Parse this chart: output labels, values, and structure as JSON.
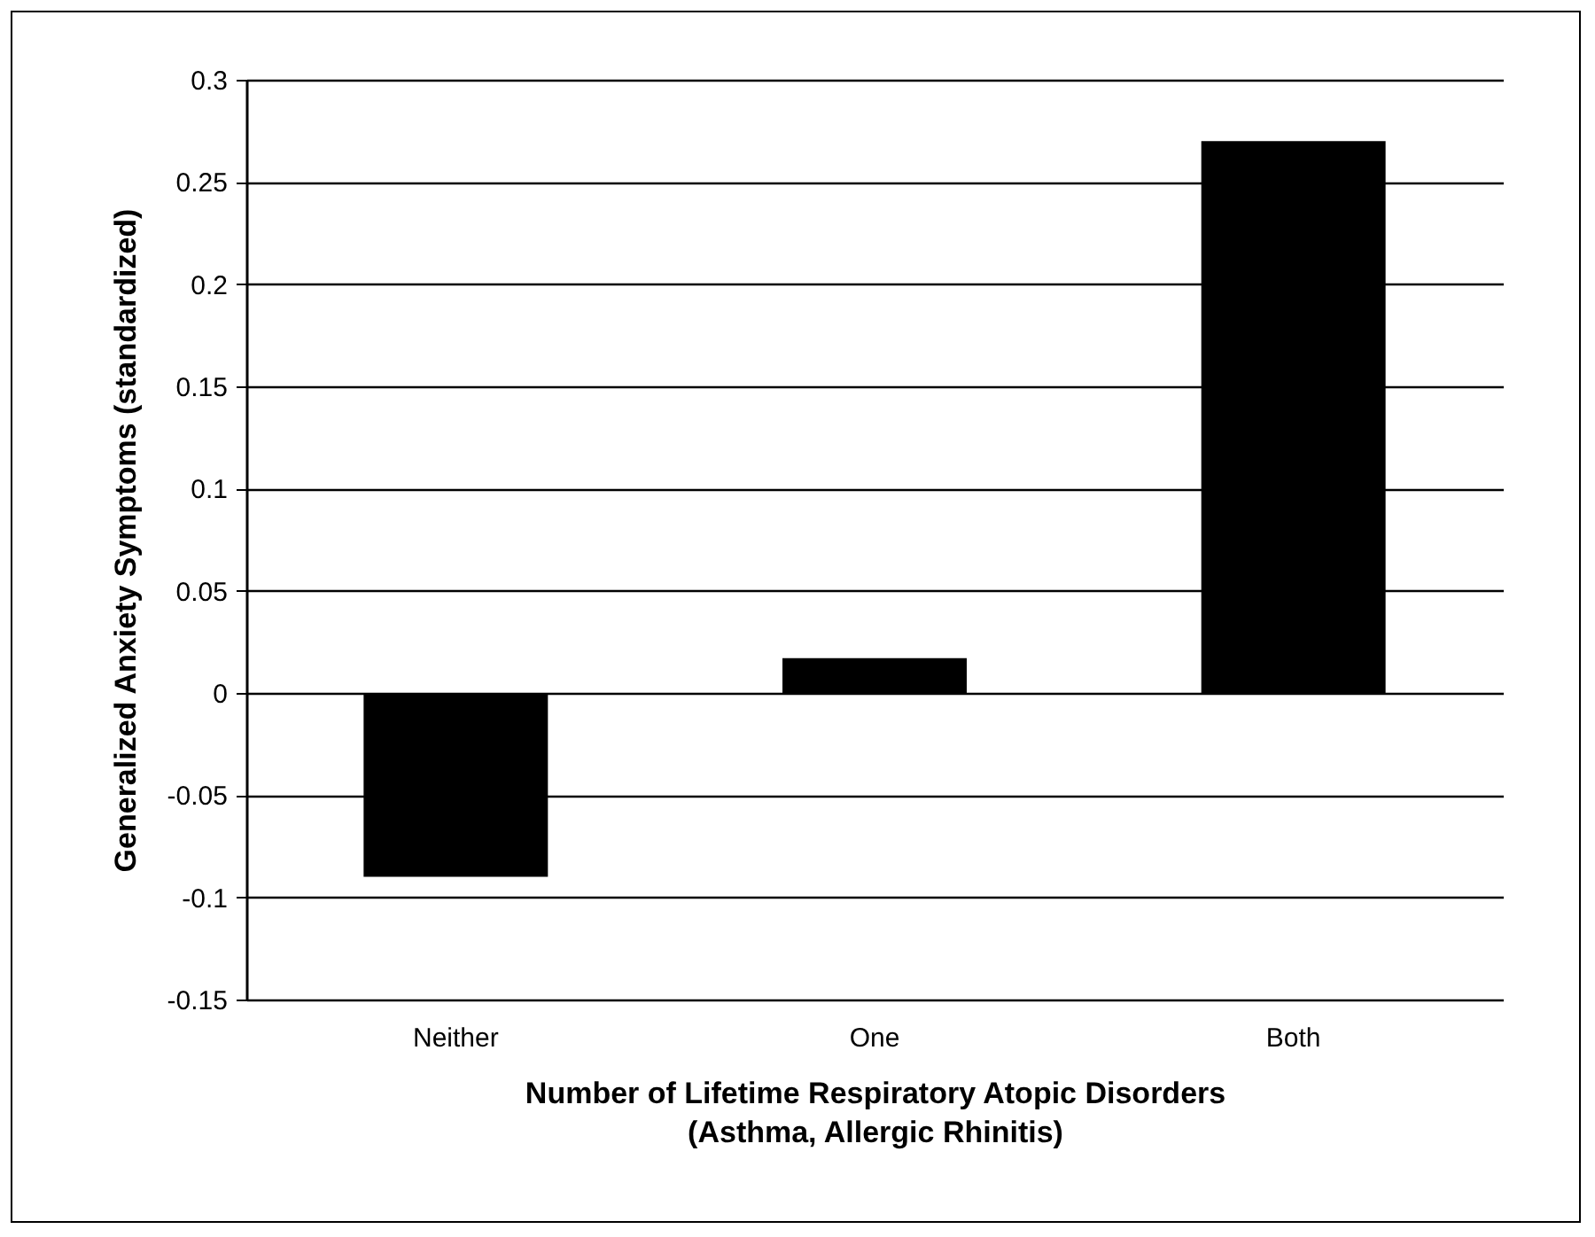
{
  "chart_data": {
    "type": "bar",
    "categories": [
      "Neither",
      "One",
      "Both"
    ],
    "values": [
      -0.09,
      0.017,
      0.27
    ],
    "color": "#000000",
    "xlabel": "Number of Lifetime Respiratory Atopic Disorders\n(Asthma, Allergic Rhinitis)",
    "ylabel": "Generalized Anxiety Symptoms (standardized)",
    "ylim": [
      -0.15,
      0.3
    ],
    "yticks": [
      -0.15,
      -0.1,
      -0.05,
      0,
      0.05,
      0.1,
      0.15,
      0.2,
      0.25,
      0.3
    ],
    "grid": "y",
    "legend": false
  }
}
